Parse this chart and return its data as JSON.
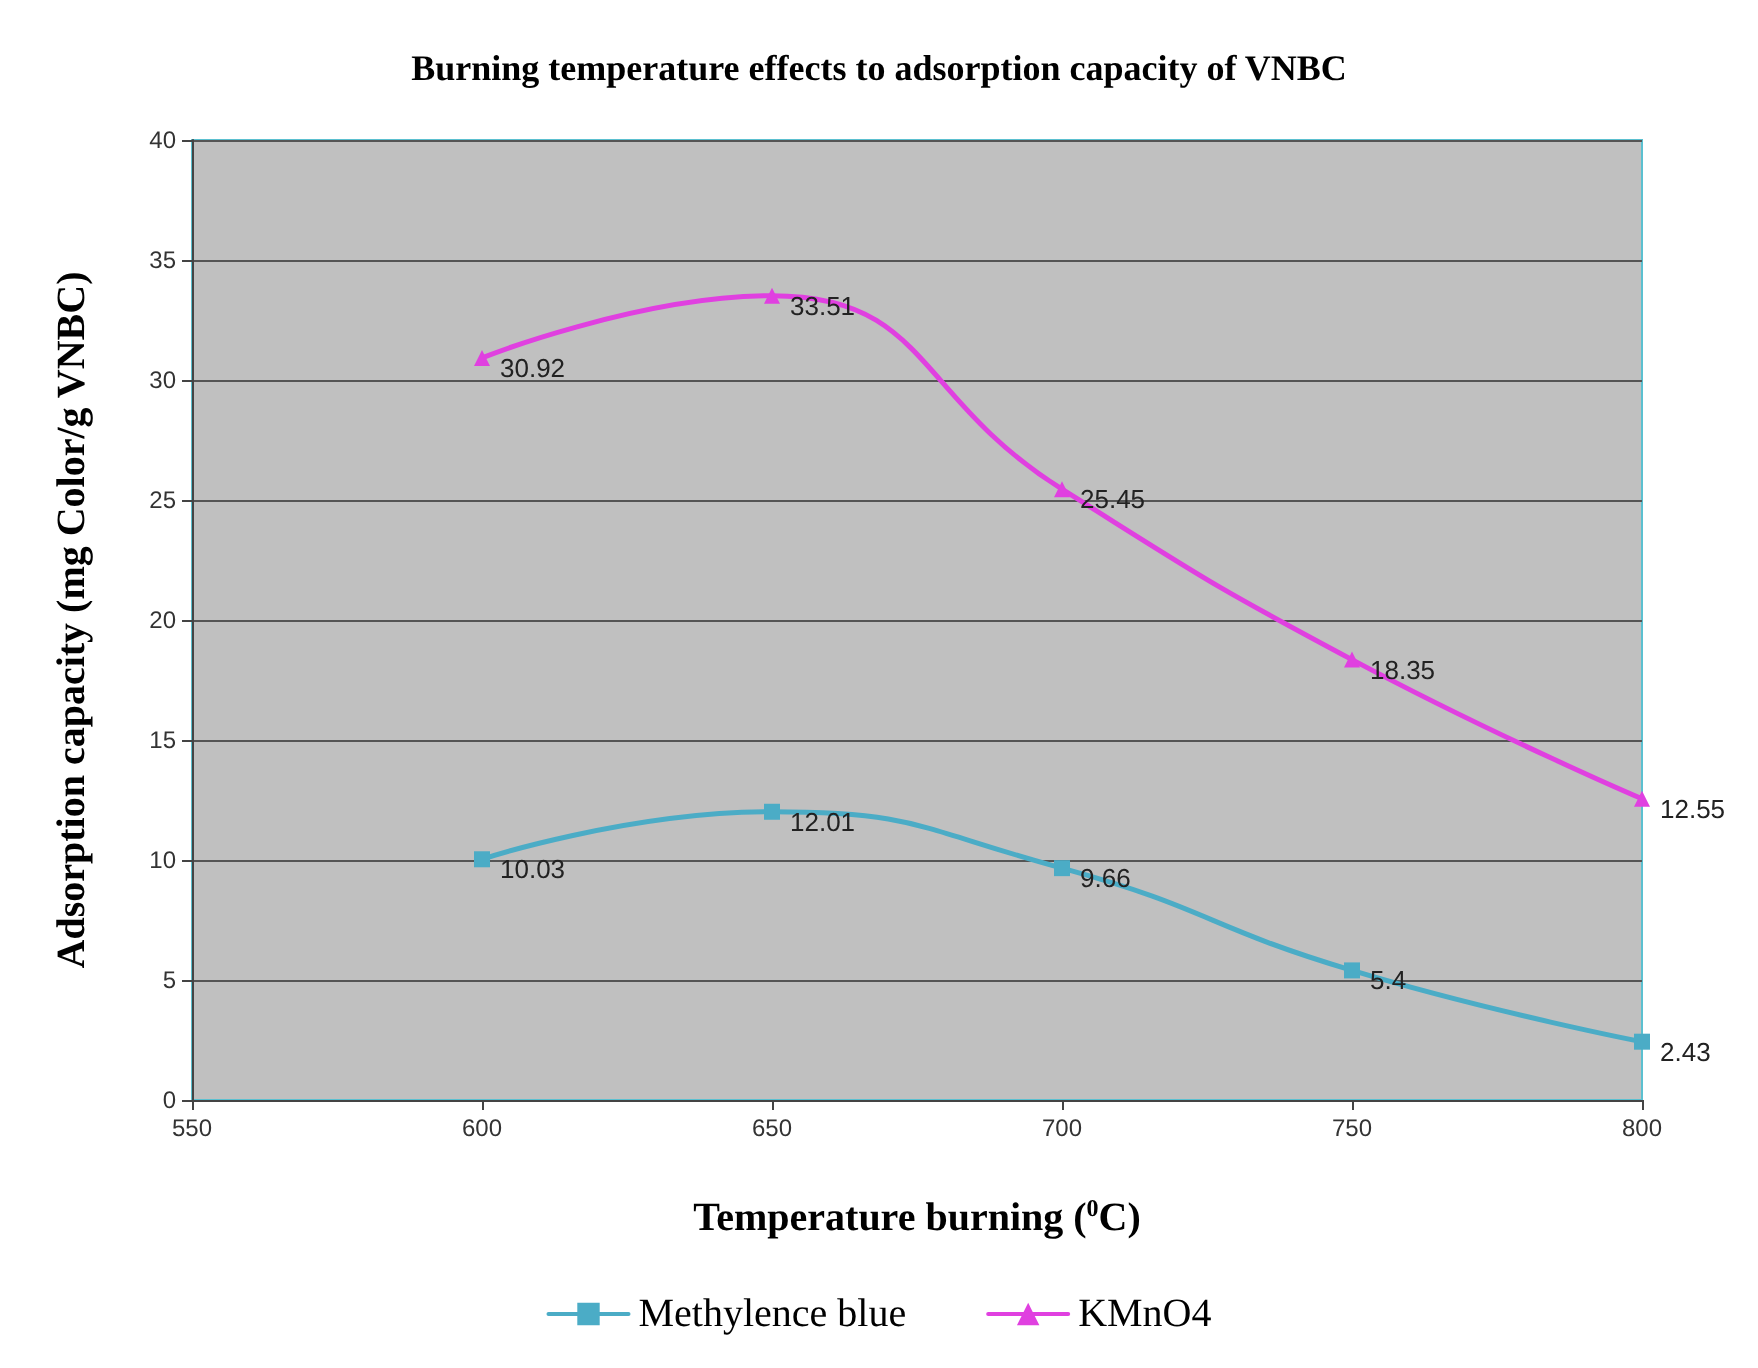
{
  "chart_data": {
    "type": "line",
    "title": "Burning temperature effects to adsorption capacity of VNBC",
    "xlabel": "Temperature burning ($^{0}$C)",
    "ylabel": "Adsorption capacity (mg Color/g VNBC)",
    "x": [
      600,
      650,
      700,
      750,
      800
    ],
    "series": [
      {
        "name": "Methylence blue",
        "color": "#4bacc6",
        "marker": "square",
        "values": [
          10.03,
          12.01,
          9.66,
          5.4,
          2.43
        ]
      },
      {
        "name": "KMnO4",
        "color": "#e040e0",
        "marker": "triangle",
        "values": [
          30.92,
          33.51,
          25.45,
          18.35,
          12.55
        ]
      }
    ],
    "xlim": [
      550,
      800
    ],
    "xticks": [
      550,
      600,
      650,
      700,
      750,
      800
    ],
    "ylim": [
      0,
      40
    ],
    "yticks": [
      0,
      5,
      10,
      15,
      20,
      25,
      30,
      35,
      40
    ],
    "grid": "y",
    "legend": "bottom",
    "data_labels": true
  }
}
